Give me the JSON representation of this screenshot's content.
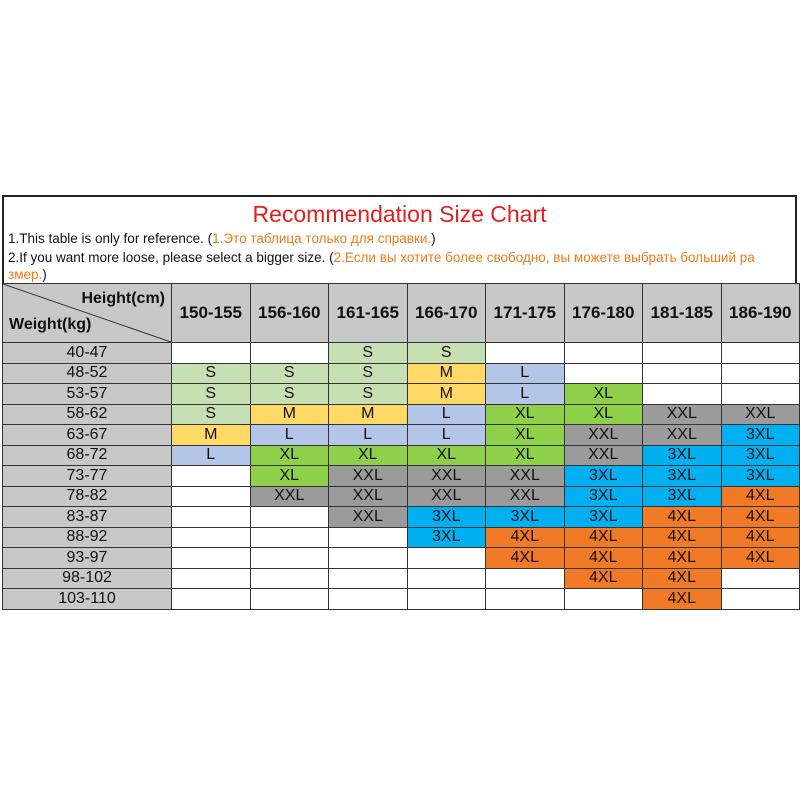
{
  "title": "Recommendation Size Chart",
  "notes": [
    {
      "en": "1.This table is only for reference. (",
      "ru": "1.Это таблица только для справки.",
      "tail": ")"
    },
    {
      "en": "2.If you want more loose, please select a bigger size. (",
      "ru": "2.Если вы хотите более свободно, вы можете выбрать больший ра",
      "tail": ""
    },
    {
      "en": "",
      "ru": "змер.",
      "tail": ")"
    }
  ],
  "table": {
    "height_label": "Height(cm)",
    "weight_label": "Weight(kg)",
    "heights": [
      "150-155",
      "156-160",
      "161-165",
      "166-170",
      "171-175",
      "176-180",
      "181-185",
      "186-190"
    ],
    "rows": [
      {
        "weight": "40-47",
        "sizes": [
          "",
          "",
          "S",
          "S",
          "",
          "",
          "",
          ""
        ]
      },
      {
        "weight": "48-52",
        "sizes": [
          "S",
          "S",
          "S",
          "M",
          "L",
          "",
          "",
          ""
        ]
      },
      {
        "weight": "53-57",
        "sizes": [
          "S",
          "S",
          "S",
          "M",
          "L",
          "XL",
          "",
          ""
        ]
      },
      {
        "weight": "58-62",
        "sizes": [
          "S",
          "M",
          "M",
          "L",
          "XL",
          "XL",
          "XXL",
          "XXL"
        ]
      },
      {
        "weight": "63-67",
        "sizes": [
          "M",
          "L",
          "L",
          "L",
          "XL",
          "XXL",
          "XXL",
          "3XL"
        ]
      },
      {
        "weight": "68-72",
        "sizes": [
          "L",
          "XL",
          "XL",
          "XL",
          "XL",
          "XXL",
          "3XL",
          "3XL"
        ]
      },
      {
        "weight": "73-77",
        "sizes": [
          "",
          "XL",
          "XXL",
          "XXL",
          "XXL",
          "3XL",
          "3XL",
          "3XL"
        ]
      },
      {
        "weight": "78-82",
        "sizes": [
          "",
          "XXL",
          "XXL",
          "XXL",
          "XXL",
          "3XL",
          "3XL",
          "4XL"
        ]
      },
      {
        "weight": "83-87",
        "sizes": [
          "",
          "",
          "XXL",
          "3XL",
          "3XL",
          "3XL",
          "4XL",
          "4XL"
        ]
      },
      {
        "weight": "88-92",
        "sizes": [
          "",
          "",
          "",
          "3XL",
          "4XL",
          "4XL",
          "4XL",
          "4XL"
        ]
      },
      {
        "weight": "93-97",
        "sizes": [
          "",
          "",
          "",
          "",
          "4XL",
          "4XL",
          "4XL",
          "4XL"
        ]
      },
      {
        "weight": "98-102",
        "sizes": [
          "",
          "",
          "",
          "",
          "",
          "4XL",
          "4XL",
          ""
        ]
      },
      {
        "weight": "103-110",
        "sizes": [
          "",
          "",
          "",
          "",
          "",
          "",
          "4XL",
          ""
        ]
      }
    ]
  },
  "size_colors": {
    "S": "#c6e0b4",
    "M": "#ffd966",
    "L": "#b4c6e7",
    "XL": "#8fd04a",
    "XXL": "#9b9b9b",
    "3XL": "#00b0f0",
    "4XL": "#f07a26"
  }
}
